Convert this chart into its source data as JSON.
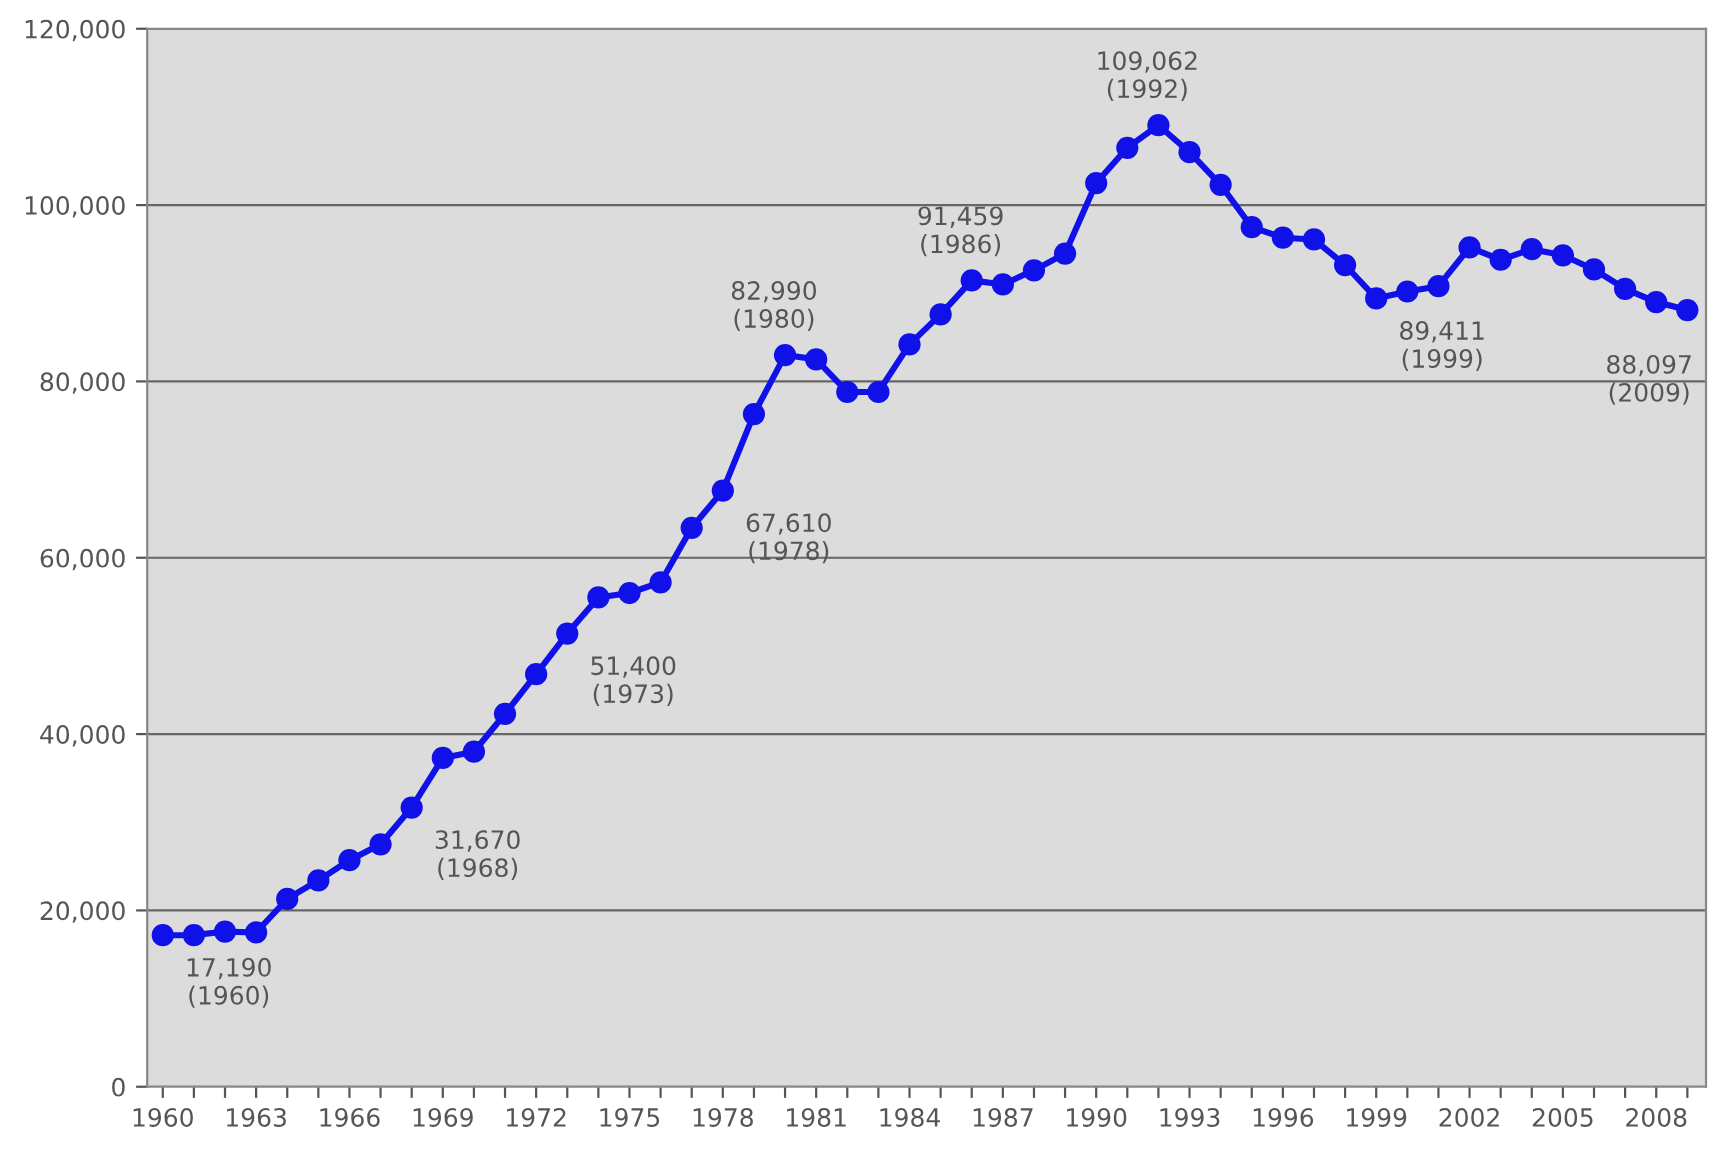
{
  "chart_data": {
    "type": "line",
    "x": [
      1960,
      1961,
      1962,
      1963,
      1964,
      1965,
      1966,
      1967,
      1968,
      1969,
      1970,
      1971,
      1972,
      1973,
      1974,
      1975,
      1976,
      1977,
      1978,
      1979,
      1980,
      1981,
      1982,
      1983,
      1984,
      1985,
      1986,
      1987,
      1988,
      1989,
      1990,
      1991,
      1992,
      1993,
      1994,
      1995,
      1996,
      1997,
      1998,
      1999,
      2000,
      2001,
      2002,
      2003,
      2004,
      2005,
      2006,
      2007,
      2008,
      2009
    ],
    "series": [
      {
        "color": "#1010e8",
        "values": [
          17190,
          17200,
          17600,
          17500,
          21300,
          23400,
          25700,
          27500,
          31670,
          37300,
          38000,
          42300,
          46800,
          51400,
          55500,
          56000,
          57200,
          63400,
          67610,
          76300,
          82990,
          82500,
          78800,
          78800,
          84200,
          87600,
          91459,
          91000,
          92600,
          94500,
          102500,
          106500,
          109062,
          106000,
          102300,
          97500,
          96300,
          96100,
          93200,
          89411,
          90200,
          90800,
          95200,
          93800,
          95000,
          94300,
          92700,
          90500,
          89000,
          88097
        ]
      }
    ],
    "xlim": [
      1959.5,
      2009.6
    ],
    "xticks": [
      1960,
      {
        "value": 1961,
        "label": null
      },
      {
        "value": 1962,
        "label": null
      },
      1963,
      {
        "value": 1964,
        "label": null
      },
      {
        "value": 1965,
        "label": null
      },
      1966,
      {
        "value": 1967,
        "label": null
      },
      {
        "value": 1968,
        "label": null
      },
      1969,
      {
        "value": 1970,
        "label": null
      },
      {
        "value": 1971,
        "label": null
      },
      1972,
      {
        "value": 1973,
        "label": null
      },
      {
        "value": 1974,
        "label": null
      },
      1975,
      {
        "value": 1976,
        "label": null
      },
      {
        "value": 1977,
        "label": null
      },
      1978,
      {
        "value": 1979,
        "label": null
      },
      {
        "value": 1980,
        "label": null
      },
      1981,
      {
        "value": 1982,
        "label": null
      },
      {
        "value": 1983,
        "label": null
      },
      1984,
      {
        "value": 1985,
        "label": null
      },
      {
        "value": 1986,
        "label": null
      },
      1987,
      {
        "value": 1988,
        "label": null
      },
      {
        "value": 1989,
        "label": null
      },
      1990,
      {
        "value": 1991,
        "label": null
      },
      {
        "value": 1992,
        "label": null
      },
      1993,
      {
        "value": 1994,
        "label": null
      },
      {
        "value": 1995,
        "label": null
      },
      1996,
      {
        "value": 1997,
        "label": null
      },
      {
        "value": 1998,
        "label": null
      },
      1999,
      {
        "value": 2000,
        "label": null
      },
      {
        "value": 2001,
        "label": null
      },
      2002,
      {
        "value": 2003,
        "label": null
      },
      {
        "value": 2004,
        "label": null
      },
      2005,
      {
        "value": 2006,
        "label": null
      },
      {
        "value": 2007,
        "label": null
      },
      2008,
      {
        "value": 2009,
        "label": null
      }
    ],
    "ylim": [
      0,
      120000
    ],
    "yticks": [
      {
        "value": 0,
        "label": "0"
      },
      {
        "value": 20000,
        "label": "20,000"
      },
      {
        "value": 40000,
        "label": "40,000"
      },
      {
        "value": 60000,
        "label": "60,000"
      },
      {
        "value": 80000,
        "label": "80,000"
      },
      {
        "value": 100000,
        "label": "100,000"
      },
      {
        "value": 120000,
        "label": "120,000"
      }
    ],
    "grid": "y",
    "marker": "circle",
    "line_style": "solid",
    "legend": false,
    "annotations": [
      {
        "text": "17,190\n(1960)",
        "x": 1960,
        "y": 17190
      },
      {
        "text": "31,670\n(1968)",
        "x": 1968,
        "y": 31670
      },
      {
        "text": "51,400\n(1973)",
        "x": 1973,
        "y": 51400
      },
      {
        "text": "67,610\n(1978)",
        "x": 1978,
        "y": 67610
      },
      {
        "text": "82,990\n(1980)",
        "x": 1980,
        "y": 82990
      },
      {
        "text": "91,459\n(1986)",
        "x": 1986,
        "y": 91459
      },
      {
        "text": "109,062\n(1992)",
        "x": 1992,
        "y": 109062
      },
      {
        "text": "89,411\n(1999)",
        "x": 1999,
        "y": 89411
      },
      {
        "text": "88,097\n(2009)",
        "x": 2009,
        "y": 88097
      }
    ]
  }
}
